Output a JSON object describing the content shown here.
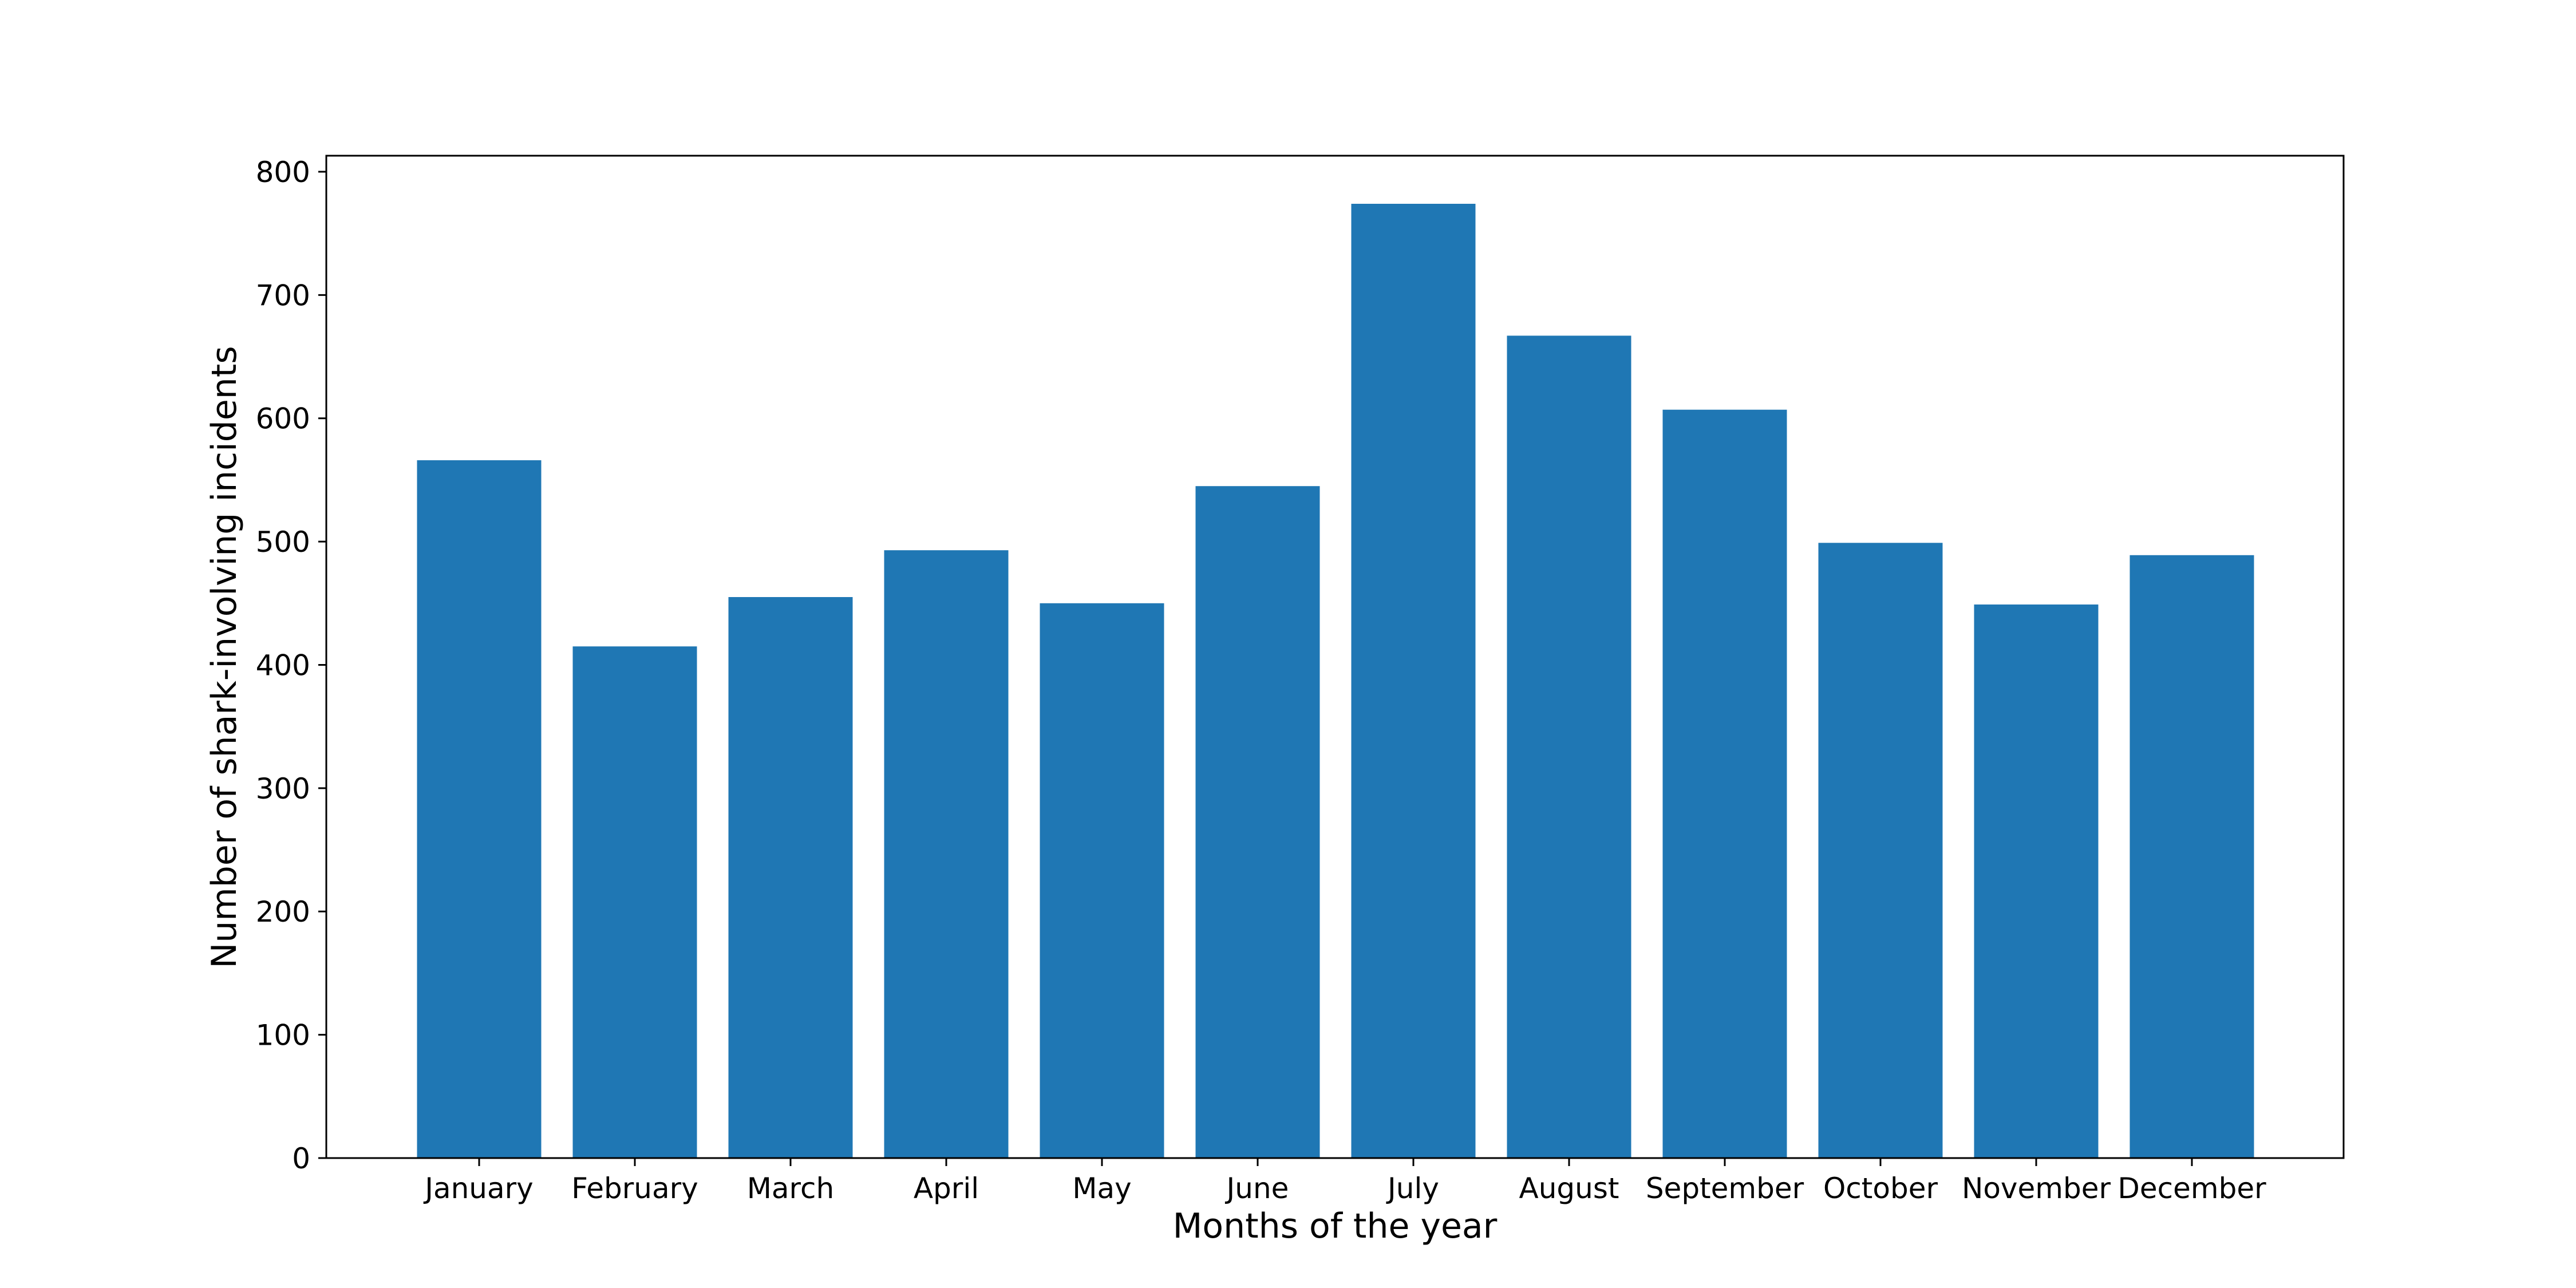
{
  "chart_data": {
    "type": "bar",
    "title": "",
    "xlabel": "Months of the year",
    "ylabel": "Number of shark-involving incidents",
    "categories": [
      "January",
      "February",
      "March",
      "April",
      "May",
      "June",
      "July",
      "August",
      "September",
      "October",
      "November",
      "December"
    ],
    "values": [
      566,
      415,
      455,
      493,
      450,
      545,
      774,
      667,
      607,
      499,
      449,
      489
    ],
    "ylim": [
      0,
      813
    ],
    "yticks": [
      0,
      100,
      200,
      300,
      400,
      500,
      600,
      700,
      800
    ],
    "grid": false,
    "legend": "none",
    "bar_color": "#1f77b4",
    "axis_color": "#000000"
  }
}
